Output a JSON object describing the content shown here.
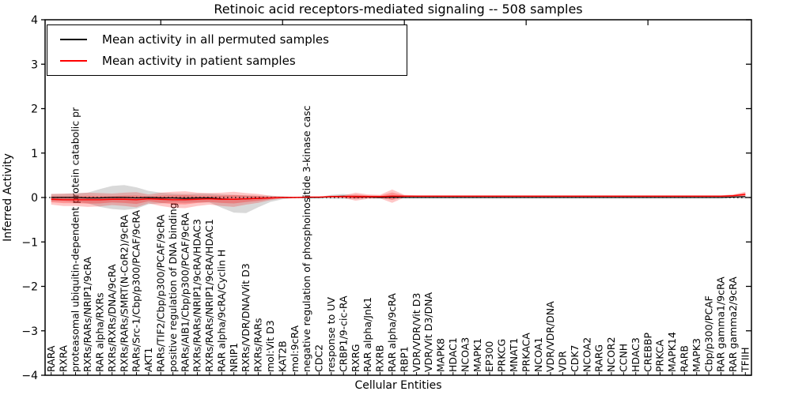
{
  "chart": {
    "title": "Retinoic acid receptors-mediated signaling -- 508 samples",
    "xlabel": "Cellular Entities",
    "ylabel": "Inferred Activity"
  },
  "legend": {
    "items": [
      {
        "label": "Mean activity in all permuted samples",
        "color": "#000000"
      },
      {
        "label": "Mean activity in patient samples",
        "color": "#ff0000"
      }
    ]
  },
  "chart_data": {
    "type": "line",
    "title": "Retinoic acid receptors-mediated signaling -- 508 samples",
    "xlabel": "Cellular Entities",
    "ylabel": "Inferred Activity",
    "ylim": [
      -4,
      4
    ],
    "yticks": [
      4,
      3,
      2,
      1,
      0,
      -1,
      -2,
      -3,
      -4
    ],
    "grid": false,
    "legend_position": "upper left",
    "zero_line": {
      "style": "dotted",
      "color": "#000000",
      "y": 0
    },
    "top_ticks_at": [
      9,
      19,
      29,
      39,
      49
    ],
    "categories": [
      "RARA",
      "RXRA",
      "proteasomal ubiquitin-dependent protein catabolic pr",
      "RXRs/RARs/NRIP1/9cRA",
      "RAR alpha/RXRs",
      "RXRs/RXRs/DNA/9cRA",
      "RXRs/RARs/SMRT(N-CoR2)/9cRA",
      "RARs/Src-1/Cbp/p300/PCAF/9cRA",
      "AKT1",
      "RARs/TIF2/Cbp/p300/PCAF/9cRA",
      "positive regulation of DNA binding",
      "RARs/AIB1/Cbp/p300/PCAF/9cRA",
      "RXRs/RARs/NRIP1/9cRA/HDAC3",
      "RXRs/RARs/NRIP1/9cRA/HDAC1",
      "RAR alpha/9cRA/Cyclin H",
      "NRIP1",
      "RXRs/VDR/DNA/Vit D3",
      "RXRs/RARs",
      "mol:Vit D3",
      "KAT2B",
      "mol:9cRA",
      "negative regulation of phosphoinositide 3-kinase casc",
      "CDC2",
      "response to UV",
      "CRBP1/9-cic-RA",
      "RXRG",
      "RAR alpha/Jnk1",
      "RXRB",
      "RAR alpha/9cRA",
      "RBP1",
      "VDR/VDR/Vit D3",
      "VDR/Vit D3/DNA",
      "MAPK8",
      "HDAC1",
      "NCOA3",
      "MAPK1",
      "EP300",
      "PRKCG",
      "MNAT1",
      "PRKACA",
      "NCOA1",
      "VDR/VDR/DNA",
      "VDR",
      "CDK7",
      "NCOA2",
      "RARG",
      "NCOR2",
      "CCNH",
      "HDAC3",
      "CREBBP",
      "PRKCA",
      "MAPK14",
      "RARB",
      "MAPK3",
      "Cbp/p300/PCAF",
      "RAR gamma1/9cRA",
      "RAR gamma2/9cRA",
      "TFIIH"
    ],
    "series": [
      {
        "name": "Mean activity in all permuted samples",
        "color": "#000000",
        "style": "solid",
        "values": [
          0,
          0,
          0,
          -0.01,
          -0.01,
          0,
          0,
          -0.01,
          0,
          -0.01,
          -0.01,
          -0.02,
          -0.01,
          -0.01,
          -0.03,
          -0.04,
          -0.03,
          -0.02,
          -0.01,
          0,
          0,
          0,
          0,
          0.02,
          0.03,
          0.01,
          0.01,
          0,
          0.01,
          0,
          0,
          0,
          0,
          0,
          0,
          0,
          0,
          0,
          0,
          0,
          0,
          0,
          0,
          0,
          0,
          0,
          0,
          0,
          0,
          0,
          0,
          0,
          0,
          0,
          0,
          0,
          0.01,
          0.02
        ]
      },
      {
        "name": "Mean activity in patient samples",
        "color": "#ff0000",
        "style": "solid",
        "values": [
          -0.04,
          -0.05,
          -0.05,
          -0.05,
          -0.05,
          -0.04,
          -0.04,
          -0.05,
          -0.03,
          -0.04,
          -0.05,
          -0.05,
          -0.04,
          -0.03,
          -0.04,
          -0.04,
          -0.03,
          -0.02,
          -0.01,
          0,
          0,
          0.01,
          0.01,
          0.02,
          0.02,
          0.02,
          0.02,
          0.02,
          0.03,
          0.03,
          0.03,
          0.03,
          0.03,
          0.03,
          0.03,
          0.03,
          0.03,
          0.03,
          0.03,
          0.03,
          0.03,
          0.03,
          0.03,
          0.03,
          0.03,
          0.03,
          0.03,
          0.03,
          0.03,
          0.03,
          0.03,
          0.03,
          0.03,
          0.03,
          0.03,
          0.03,
          0.04,
          0.07
        ]
      }
    ],
    "bands": [
      {
        "series": "Mean activity in all permuted samples",
        "color": "#808080",
        "opacity": 0.3,
        "low": [
          -0.08,
          -0.08,
          -0.1,
          -0.13,
          -0.21,
          -0.26,
          -0.28,
          -0.25,
          -0.15,
          -0.13,
          -0.11,
          -0.12,
          -0.11,
          -0.11,
          -0.23,
          -0.34,
          -0.35,
          -0.22,
          -0.1,
          -0.04,
          -0.01,
          -0.01,
          -0.01,
          -0.03,
          -0.03,
          -0.03,
          -0.02,
          -0.02,
          -0.04,
          -0.01,
          -0.01,
          -0.01,
          -0.01,
          -0.01,
          -0.01,
          -0.01,
          -0.01,
          -0.01,
          -0.01,
          -0.01,
          -0.01,
          -0.01,
          -0.01,
          -0.01,
          -0.01,
          -0.01,
          -0.01,
          -0.01,
          -0.01,
          -0.01,
          -0.01,
          -0.01,
          -0.01,
          -0.01,
          -0.01,
          -0.01,
          -0.02,
          -0.03
        ],
        "high": [
          0.08,
          0.08,
          0.1,
          0.11,
          0.19,
          0.26,
          0.28,
          0.23,
          0.15,
          0.11,
          0.09,
          0.08,
          0.09,
          0.09,
          0.07,
          0.06,
          0.05,
          0.04,
          0.04,
          0.03,
          0.01,
          0.01,
          0.01,
          0.06,
          0.08,
          0.05,
          0.04,
          0.02,
          0.06,
          0.01,
          0.01,
          0.01,
          0.01,
          0.01,
          0.01,
          0.01,
          0.01,
          0.01,
          0.01,
          0.01,
          0.01,
          0.01,
          0.01,
          0.01,
          0.01,
          0.01,
          0.01,
          0.01,
          0.01,
          0.01,
          0.01,
          0.01,
          0.01,
          0.01,
          0.01,
          0.01,
          0.02,
          0.04
        ]
      },
      {
        "series": "Mean activity in patient samples",
        "color": "#ff0000",
        "opacity": 0.22,
        "low": [
          -0.16,
          -0.19,
          -0.19,
          -0.21,
          -0.2,
          -0.17,
          -0.19,
          -0.22,
          -0.13,
          -0.19,
          -0.23,
          -0.24,
          -0.19,
          -0.16,
          -0.19,
          -0.21,
          -0.16,
          -0.12,
          -0.06,
          -0.02,
          -0.01,
          0,
          0,
          0,
          -0.01,
          -0.07,
          -0.03,
          -0.02,
          -0.12,
          0,
          0.01,
          0.01,
          0.01,
          0.01,
          0.01,
          0.01,
          0.01,
          0.01,
          0.01,
          0.01,
          0.01,
          0.01,
          0.01,
          0.01,
          0.01,
          0.01,
          0.01,
          0.01,
          0.01,
          0.01,
          0.01,
          0.01,
          0.01,
          0.01,
          0.01,
          0.01,
          0.01,
          0.01
        ],
        "high": [
          0.08,
          0.09,
          0.09,
          0.11,
          0.1,
          0.09,
          0.11,
          0.12,
          0.07,
          0.11,
          0.13,
          0.14,
          0.11,
          0.1,
          0.11,
          0.13,
          0.1,
          0.08,
          0.04,
          0.02,
          0.01,
          0.02,
          0.02,
          0.04,
          0.05,
          0.11,
          0.07,
          0.06,
          0.18,
          0.06,
          0.05,
          0.05,
          0.05,
          0.05,
          0.05,
          0.05,
          0.05,
          0.05,
          0.05,
          0.05,
          0.05,
          0.05,
          0.05,
          0.05,
          0.05,
          0.05,
          0.05,
          0.05,
          0.05,
          0.05,
          0.05,
          0.05,
          0.05,
          0.05,
          0.05,
          0.05,
          0.07,
          0.13
        ]
      }
    ]
  }
}
